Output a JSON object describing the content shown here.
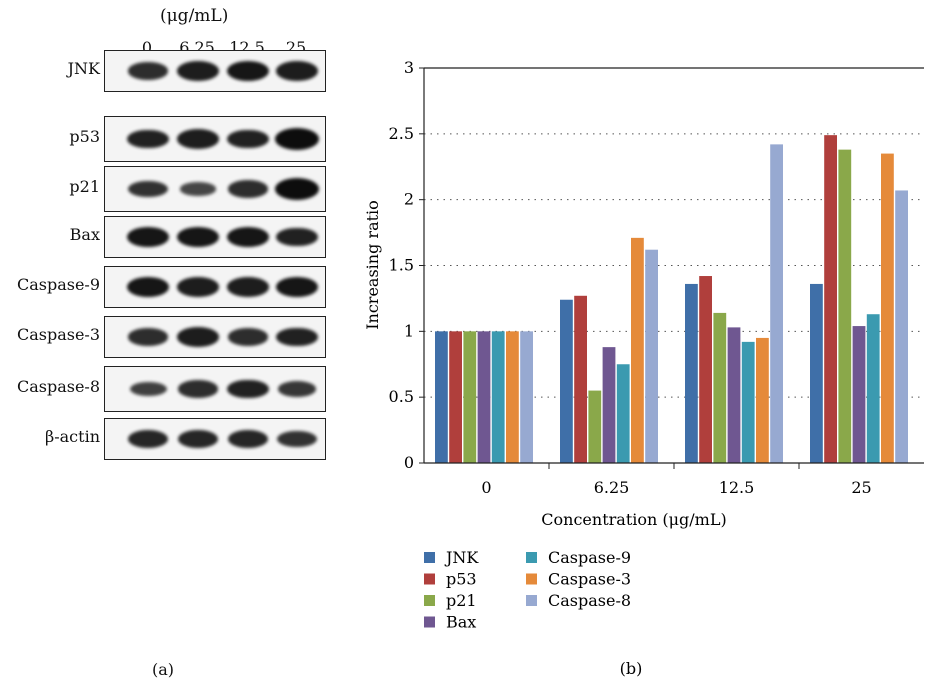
{
  "panel_a": {
    "unit_label": "(μg/mL)",
    "concentrations": [
      "0",
      "6.25",
      "12.5",
      "25"
    ],
    "rows": [
      {
        "label": "JNK",
        "band_intensity": [
          0.7,
          0.85,
          0.9,
          0.85
        ]
      },
      {
        "label": "p53",
        "band_intensity": [
          0.8,
          0.85,
          0.8,
          1.0
        ]
      },
      {
        "label": "p21",
        "band_intensity": [
          0.65,
          0.45,
          0.7,
          1.0
        ]
      },
      {
        "label": "Bax",
        "band_intensity": [
          0.9,
          0.9,
          0.9,
          0.8
        ]
      },
      {
        "label": "Caspase-9",
        "band_intensity": [
          0.9,
          0.85,
          0.85,
          0.9
        ]
      },
      {
        "label": "Caspase-3",
        "band_intensity": [
          0.7,
          0.85,
          0.7,
          0.8
        ]
      },
      {
        "label": "Caspase-8",
        "band_intensity": [
          0.5,
          0.7,
          0.8,
          0.6
        ]
      },
      {
        "label": "β-actin",
        "band_intensity": [
          0.75,
          0.75,
          0.75,
          0.65
        ]
      }
    ],
    "caption": "(a)"
  },
  "chart_data": {
    "type": "bar",
    "categories": [
      "0",
      "6.25",
      "12.5",
      "25"
    ],
    "series": [
      {
        "name": "JNK",
        "color": "#3f6fa8",
        "values": [
          1.0,
          1.24,
          1.36,
          1.36
        ]
      },
      {
        "name": "p53",
        "color": "#b03f3c",
        "values": [
          1.0,
          1.27,
          1.42,
          2.49
        ]
      },
      {
        "name": "p21",
        "color": "#8aa84a",
        "values": [
          1.0,
          0.55,
          1.14,
          2.38
        ]
      },
      {
        "name": "Bax",
        "color": "#6f5791",
        "values": [
          1.0,
          0.88,
          1.03,
          1.04
        ]
      },
      {
        "name": "Caspase-9",
        "color": "#3b9ab0",
        "values": [
          1.0,
          0.75,
          0.92,
          1.13
        ]
      },
      {
        "name": "Caspase-3",
        "color": "#e58a3a",
        "values": [
          1.0,
          1.71,
          0.95,
          2.35
        ]
      },
      {
        "name": "Caspase-8",
        "color": "#97a9d1",
        "values": [
          1.0,
          1.62,
          2.42,
          2.07
        ]
      }
    ],
    "ylim": [
      0,
      3
    ],
    "yticks": [
      "0",
      "0.5",
      "1",
      "1.5",
      "2",
      "2.5",
      "3"
    ],
    "ylabel": "Increasing ratio",
    "xlabel": "Concentration (μg/mL)",
    "grid": "horizontal dotted",
    "legend_position": "bottom",
    "caption": "(b)"
  }
}
